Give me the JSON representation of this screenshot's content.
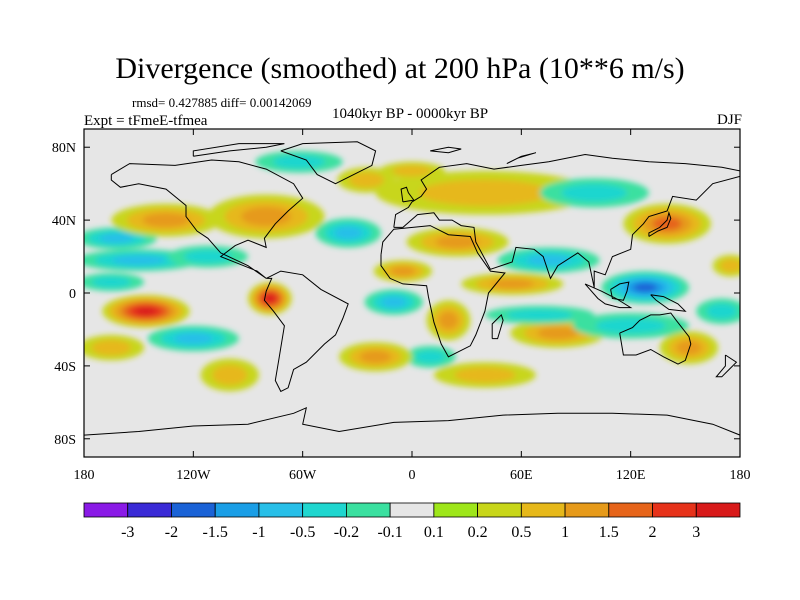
{
  "chart_data": {
    "type": "heatmap",
    "title": "Divergence (smoothed) at 200 hPa (10**6 m/s)",
    "stats": "rmsd= 0.427885  diff= 0.00142069",
    "experiment": "Expt = tFmeE-tfmea",
    "period": "1040kyr BP - 0000kyr BP",
    "season": "DJF",
    "xlim": [
      -180,
      180
    ],
    "ylim": [
      -90,
      90
    ],
    "x_ticks": [
      {
        "value": -180,
        "label": "180"
      },
      {
        "value": -120,
        "label": "120W"
      },
      {
        "value": -60,
        "label": "60W"
      },
      {
        "value": 0,
        "label": "0"
      },
      {
        "value": 60,
        "label": "60E"
      },
      {
        "value": 120,
        "label": "120E"
      },
      {
        "value": 180,
        "label": "180"
      }
    ],
    "y_ticks": [
      {
        "value": 80,
        "label": "80N"
      },
      {
        "value": 40,
        "label": "40N"
      },
      {
        "value": 0,
        "label": "0"
      },
      {
        "value": -40,
        "label": "40S"
      },
      {
        "value": -80,
        "label": "80S"
      }
    ],
    "colorbar": {
      "labels": [
        "-3",
        "-2",
        "-1.5",
        "-1",
        "-0.5",
        "-0.2",
        "-0.1",
        "0.1",
        "0.2",
        "0.5",
        "1",
        "1.5",
        "2",
        "3"
      ],
      "colors": [
        "#8a1ae6",
        "#3a2ad6",
        "#1a62d6",
        "#1a9ee6",
        "#28bfe8",
        "#1fd6cf",
        "#3be0a0",
        "#e6e6e6",
        "#9ee61a",
        "#c8d61a",
        "#e6b81a",
        "#e69a1a",
        "#e6641a",
        "#e6321a",
        "#d81a1a"
      ]
    },
    "features": [
      {
        "name": "central-pacific-max",
        "lon": -146,
        "lat": -10,
        "rlon": 24,
        "rlat": 9,
        "value": 3
      },
      {
        "name": "south-america-max",
        "lon": -78,
        "lat": -3,
        "rlon": 12,
        "rlat": 9,
        "value": 3
      },
      {
        "name": "maritime-continent-min",
        "lon": 128,
        "lat": 3,
        "rlon": 24,
        "rlat": 9,
        "value": -2
      },
      {
        "name": "tropical-pacific-west-min",
        "lon": -162,
        "lat": 30,
        "rlon": 22,
        "rlat": 6,
        "value": -1
      },
      {
        "name": "north-pacific-min",
        "lon": -150,
        "lat": 18,
        "rlon": 34,
        "rlat": 6,
        "value": -1
      },
      {
        "name": "north-pacific-min-2",
        "lon": -112,
        "lat": 20,
        "rlon": 22,
        "rlat": 6,
        "value": -0.5
      },
      {
        "name": "equatorial-pacific-min",
        "lon": -165,
        "lat": 6,
        "rlon": 18,
        "rlat": 5,
        "value": -0.5
      },
      {
        "name": "north-pacific-max",
        "lon": -135,
        "lat": 40,
        "rlon": 30,
        "rlat": 9,
        "value": 1
      },
      {
        "name": "north-america-max",
        "lon": -80,
        "lat": 42,
        "rlon": 32,
        "rlat": 12,
        "value": 1
      },
      {
        "name": "north-atlantic-min",
        "lon": -35,
        "lat": 33,
        "rlon": 18,
        "rlat": 8,
        "value": -1
      },
      {
        "name": "subpolar-atlantic-max",
        "lon": -25,
        "lat": 62,
        "rlon": 16,
        "rlat": 7,
        "value": 0.5
      },
      {
        "name": "north-africa-max",
        "lon": -5,
        "lat": 12,
        "rlon": 16,
        "rlat": 6,
        "value": 1
      },
      {
        "name": "mediterranean-max",
        "lon": 25,
        "lat": 28,
        "rlon": 28,
        "rlat": 8,
        "value": 1
      },
      {
        "name": "arctic-min",
        "lon": -62,
        "lat": 72,
        "rlon": 24,
        "rlat": 6,
        "value": -0.5
      },
      {
        "name": "eurasia-max",
        "lon": 40,
        "lat": 55,
        "rlon": 60,
        "rlat": 12,
        "value": 0.5
      },
      {
        "name": "siberia-min",
        "lon": 100,
        "lat": 55,
        "rlon": 30,
        "rlat": 8,
        "value": -0.5
      },
      {
        "name": "north-america-high-max",
        "lon": 0,
        "lat": 67,
        "rlon": 18,
        "rlat": 5,
        "value": 0.5
      },
      {
        "name": "east-asia-max",
        "lon": 140,
        "lat": 38,
        "rlon": 24,
        "rlat": 11,
        "value": 1.5
      },
      {
        "name": "indian-ocean-min",
        "lon": 75,
        "lat": 18,
        "rlon": 28,
        "rlat": 7,
        "value": -1
      },
      {
        "name": "arabia-max",
        "lon": 55,
        "lat": 5,
        "rlon": 28,
        "rlat": 6,
        "value": 1
      },
      {
        "name": "africa-max",
        "lon": 20,
        "lat": -15,
        "rlon": 12,
        "rlat": 11,
        "value": 1
      },
      {
        "name": "south-atlantic-min",
        "lon": -10,
        "lat": -5,
        "rlon": 16,
        "rlat": 7,
        "value": -1
      },
      {
        "name": "indian-ocean-max",
        "lon": 80,
        "lat": -22,
        "rlon": 26,
        "rlat": 8,
        "value": 1
      },
      {
        "name": "south-indian-min",
        "lon": 70,
        "lat": -12,
        "rlon": 30,
        "rlat": 5,
        "value": -0.5
      },
      {
        "name": "australia-min",
        "lon": 120,
        "lat": -18,
        "rlon": 32,
        "rlat": 7,
        "value": -0.5
      },
      {
        "name": "tasman-max",
        "lon": 152,
        "lat": -30,
        "rlon": 16,
        "rlat": 9,
        "value": 1
      },
      {
        "name": "south-pacific-min",
        "lon": -120,
        "lat": -25,
        "rlon": 25,
        "rlat": 7,
        "value": -1
      },
      {
        "name": "south-pacific-max",
        "lon": -100,
        "lat": -45,
        "rlon": 16,
        "rlat": 9,
        "value": 0.5
      },
      {
        "name": "southern-ocean-max",
        "lon": 40,
        "lat": -45,
        "rlon": 28,
        "rlat": 7,
        "value": 0.5
      },
      {
        "name": "southern-ocean-min",
        "lon": 10,
        "lat": -35,
        "rlon": 14,
        "rlat": 6,
        "value": -0.5
      },
      {
        "name": "south-atlantic-max",
        "lon": -20,
        "lat": -35,
        "rlon": 20,
        "rlat": 8,
        "value": 1
      },
      {
        "name": "pacific-east-max",
        "lon": -165,
        "lat": -30,
        "rlon": 18,
        "rlat": 7,
        "value": 0.5
      },
      {
        "name": "far-east-pacific-min",
        "lon": 170,
        "lat": -10,
        "rlon": 14,
        "rlat": 7,
        "value": -0.5
      },
      {
        "name": "date-line-max",
        "lon": 175,
        "lat": 15,
        "rlon": 10,
        "rlat": 6,
        "value": 0.5
      }
    ]
  }
}
